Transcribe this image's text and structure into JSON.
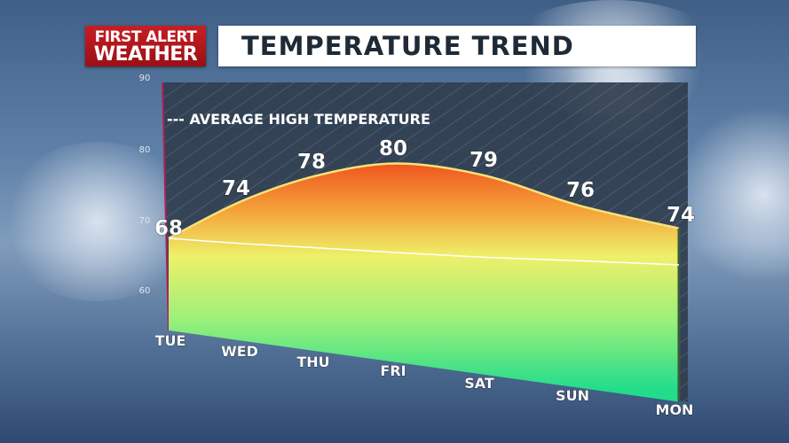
{
  "logo": {
    "line1": "FIRST ALERT",
    "line2": "WEATHER"
  },
  "title": "TEMPERATURE TREND",
  "chart_data": {
    "type": "area",
    "title": "TEMPERATURE TREND",
    "categories": [
      "TUE",
      "WED",
      "THU",
      "FRI",
      "SAT",
      "SUN",
      "MON"
    ],
    "series": [
      {
        "name": "",
        "values": [
          68,
          74,
          78,
          80,
          79,
          76,
          74
        ]
      },
      {
        "name": "AVERAGE HIGH TEMPERATURE",
        "values": [
          68,
          68.3,
          68.7,
          69,
          69.3,
          69.7,
          70
        ]
      }
    ],
    "legend": "--- AVERAGE HIGH TEMPERATURE",
    "legend_placement": "top-left",
    "yticks": [
      90,
      80,
      70,
      60
    ],
    "ylim": [
      55,
      90
    ],
    "colors": {
      "warm": "#f25a1e",
      "mid": "#f0e060",
      "cool": "#2fe08a",
      "line": "#f6e27a",
      "avg": "#ffffff"
    }
  }
}
